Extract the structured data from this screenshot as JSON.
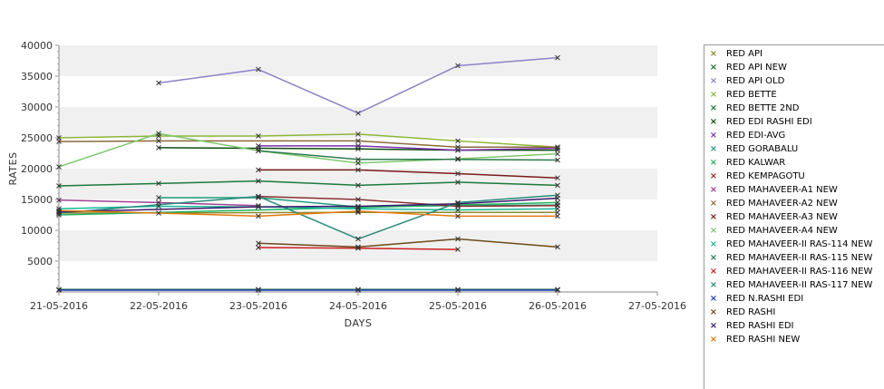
{
  "chart_data": {
    "type": "line",
    "xlabel": "DAYS",
    "ylabel": "RATES",
    "x_ticks": [
      "21-05-2016",
      "22-05-2016",
      "23-05-2016",
      "24-05-2016",
      "25-05-2016",
      "26-05-2016",
      "27-05-2016"
    ],
    "y_ticks": [
      "5000",
      "10000",
      "15000",
      "20000",
      "25000",
      "30000",
      "35000",
      "40000"
    ],
    "ylim": [
      0,
      40000
    ],
    "grid": "horizontal bands",
    "legend_position": "right",
    "series": [
      {
        "name": "RED API",
        "color": "#8a8a2a",
        "points": [
          [
            0,
            12800
          ],
          [
            3,
            12900
          ],
          [
            5,
            12900
          ]
        ]
      },
      {
        "name": "RED API NEW",
        "color": "#1d6b2e",
        "points": [
          [
            0,
            400
          ],
          [
            2,
            400
          ],
          [
            3,
            400
          ],
          [
            4,
            400
          ],
          [
            5,
            400
          ]
        ]
      },
      {
        "name": "RED API OLD",
        "color": "#8f80c6",
        "points": [
          [
            1,
            33900
          ],
          [
            2,
            36100
          ],
          [
            3,
            29000
          ],
          [
            4,
            36700
          ],
          [
            5,
            38000
          ]
        ]
      },
      {
        "name": "RED BETTE",
        "color": "#8db83a",
        "points": [
          [
            0,
            25000
          ],
          [
            1,
            25300
          ],
          [
            2,
            25300
          ],
          [
            3,
            25600
          ],
          [
            4,
            24500
          ],
          [
            5,
            23500
          ]
        ]
      },
      {
        "name": "RED BETTE 2ND",
        "color": "#1a7a3a",
        "points": [
          [
            0,
            17200
          ],
          [
            1,
            17600
          ],
          [
            2,
            18000
          ],
          [
            3,
            17300
          ],
          [
            4,
            17800
          ],
          [
            5,
            17300
          ]
        ]
      },
      {
        "name": "RED EDI RASHI EDI",
        "color": "#0d4d0d",
        "points": [
          [
            1,
            23400
          ],
          [
            2,
            23300
          ],
          [
            3,
            23200
          ],
          [
            4,
            23000
          ],
          [
            5,
            23000
          ]
        ]
      },
      {
        "name": "RED EDI-AVG",
        "color": "#7a2fb0",
        "points": [
          [
            2,
            23700
          ],
          [
            3,
            23700
          ],
          [
            4,
            23000
          ],
          [
            5,
            23300
          ]
        ]
      },
      {
        "name": "RED GORABALU",
        "color": "#1e9e80",
        "points": [
          [
            1,
            15300
          ],
          [
            2,
            15300
          ],
          [
            3,
            13800
          ],
          [
            4,
            14000
          ],
          [
            5,
            14100
          ]
        ]
      },
      {
        "name": "RED KALWAR",
        "color": "#21b360",
        "points": [
          [
            0,
            12500
          ],
          [
            3,
            13700
          ],
          [
            5,
            14500
          ]
        ]
      },
      {
        "name": "RED KEMPAGOTU",
        "color": "#8a3030",
        "points": [
          [
            2,
            15500
          ],
          [
            3,
            15000
          ],
          [
            4,
            13900
          ],
          [
            5,
            14000
          ]
        ]
      },
      {
        "name": "RED MAHAVEER-A1 NEW",
        "color": "#a04090",
        "points": [
          [
            0,
            14900
          ],
          [
            1,
            14500
          ],
          [
            2,
            14000
          ]
        ]
      },
      {
        "name": "RED MAHAVEER-A2 NEW",
        "color": "#8a6a3a",
        "points": [
          [
            0,
            24400
          ],
          [
            1,
            24500
          ],
          [
            3,
            24500
          ],
          [
            4,
            23500
          ],
          [
            5,
            23500
          ]
        ]
      },
      {
        "name": "RED MAHAVEER-A3 NEW",
        "color": "#7a1a1a",
        "points": [
          [
            2,
            19800
          ],
          [
            3,
            19800
          ],
          [
            4,
            19200
          ],
          [
            5,
            18500
          ]
        ]
      },
      {
        "name": "RED MAHAVEER-A4 NEW",
        "color": "#7ec86e",
        "points": [
          [
            0,
            20300
          ],
          [
            1,
            25700
          ],
          [
            2,
            22900
          ],
          [
            3,
            20900
          ],
          [
            4,
            21600
          ],
          [
            5,
            22400
          ]
        ]
      },
      {
        "name": "RED MAHAVEER-II RAS-114 NEW",
        "color": "#16b89a",
        "points": [
          [
            0,
            13500
          ],
          [
            1,
            13900
          ],
          [
            2,
            13800
          ],
          [
            3,
            13500
          ],
          [
            4,
            13300
          ],
          [
            5,
            13500
          ]
        ]
      },
      {
        "name": "RED MAHAVEER-II RAS-115 NEW",
        "color": "#2d7a4a",
        "points": [
          [
            2,
            22900
          ],
          [
            3,
            21500
          ],
          [
            4,
            21500
          ],
          [
            5,
            21400
          ]
        ]
      },
      {
        "name": "RED MAHAVEER-II RAS-116 NEW",
        "color": "#cc1f1f",
        "points": [
          [
            2,
            7200
          ],
          [
            3,
            7100
          ],
          [
            4,
            6900
          ]
        ]
      },
      {
        "name": "RED MAHAVEER-II RAS-117 NEW",
        "color": "#2a8a7a",
        "points": [
          [
            0,
            12800
          ],
          [
            2,
            15500
          ],
          [
            3,
            8600
          ],
          [
            4,
            14500
          ],
          [
            5,
            15700
          ]
        ]
      },
      {
        "name": "RED N.RASHI EDI",
        "color": "#1f3fbf",
        "points": [
          [
            0,
            300
          ],
          [
            2,
            300
          ],
          [
            3,
            300
          ],
          [
            4,
            300
          ],
          [
            5,
            300
          ]
        ]
      },
      {
        "name": "RED RASHI",
        "color": "#6b4a1a",
        "points": [
          [
            2,
            7900
          ],
          [
            3,
            7300
          ],
          [
            4,
            8600
          ],
          [
            5,
            7300
          ]
        ]
      },
      {
        "name": "RED RASHI EDI",
        "color": "#3a1a6b",
        "points": [
          [
            0,
            13000
          ],
          [
            2,
            13800
          ],
          [
            3,
            13900
          ],
          [
            4,
            14300
          ],
          [
            5,
            15200
          ]
        ]
      },
      {
        "name": "RED RASHI NEW",
        "color": "#e07a10",
        "points": [
          [
            0,
            13200
          ],
          [
            1,
            12800
          ],
          [
            2,
            12300
          ],
          [
            3,
            13100
          ],
          [
            4,
            12300
          ],
          [
            5,
            12300
          ]
        ]
      }
    ]
  }
}
